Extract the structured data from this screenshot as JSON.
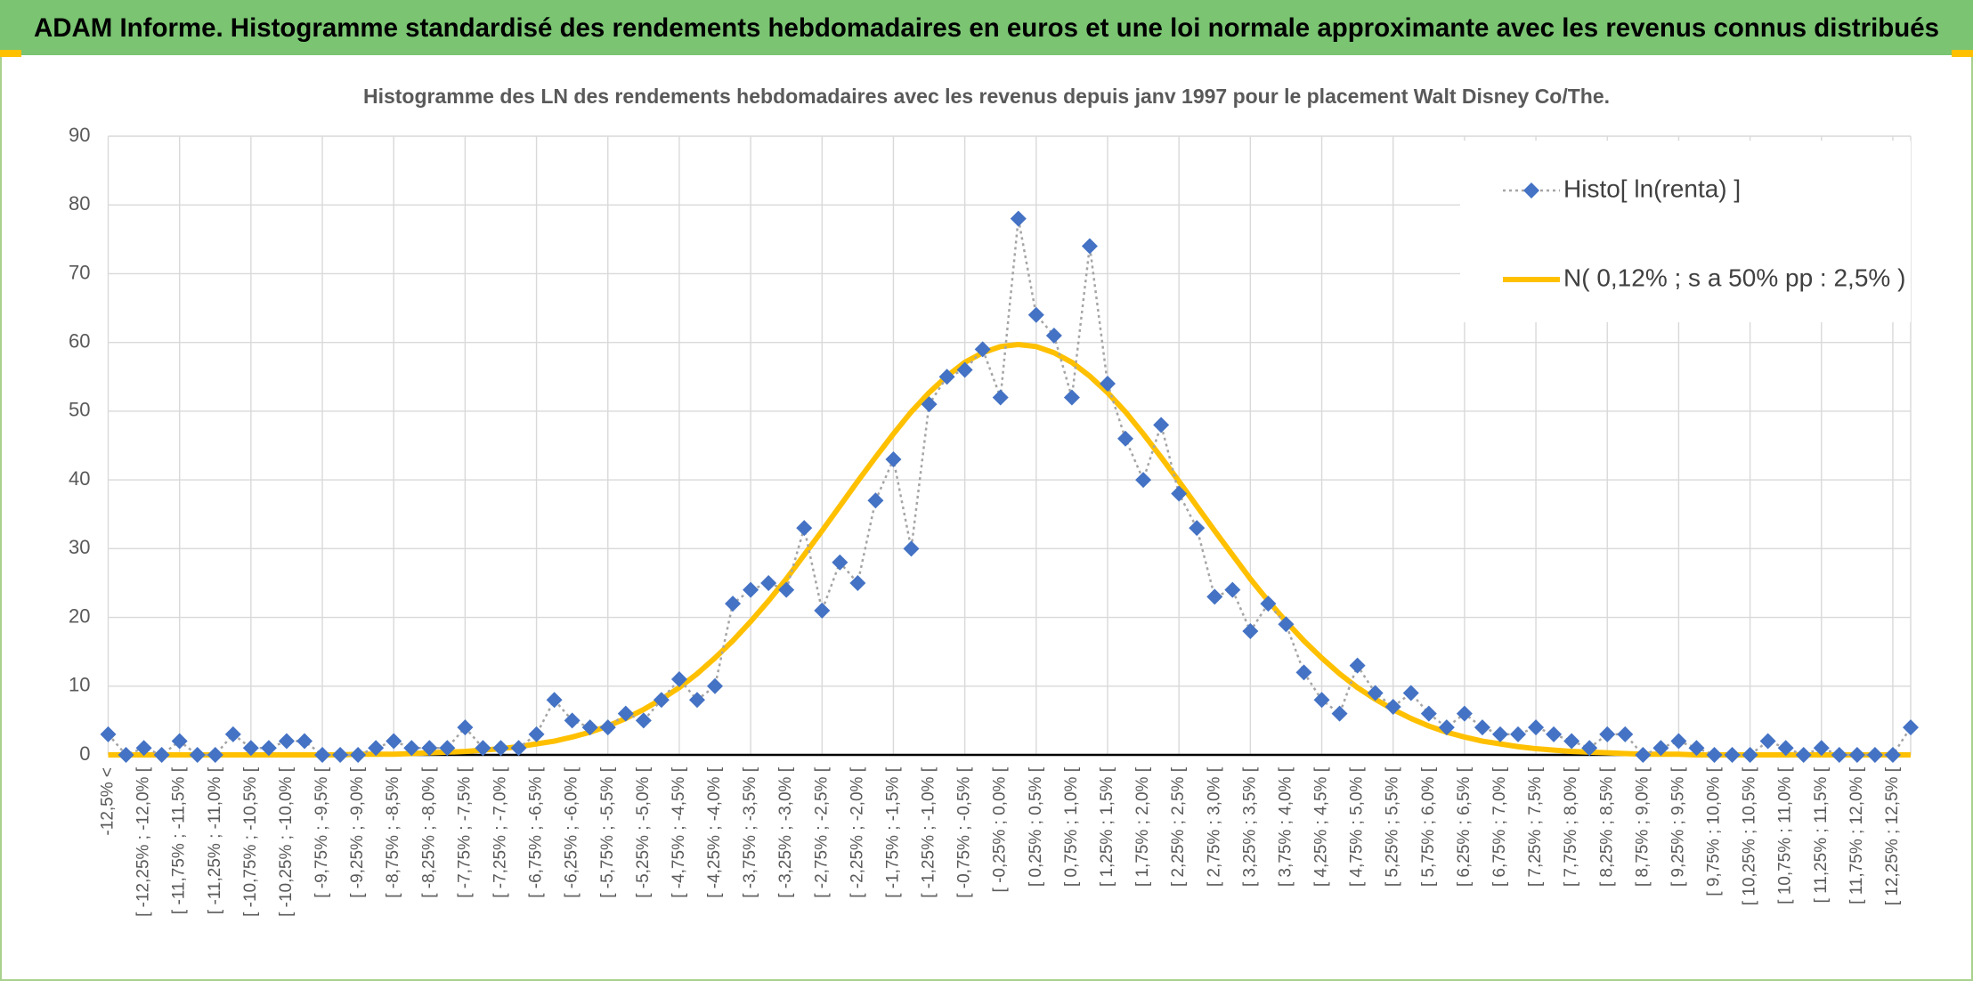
{
  "header": {
    "title": "ADAM Informe. Histogramme standardisé des rendements hebdomadaires en euros et une loi normale approximante avec les revenus connus distribués"
  },
  "chart_data": {
    "type": "line",
    "title": "Histogramme des LN des rendements hebdomadaires avec les revenus depuis janv 1997 pour le placement Walt Disney Co/The.",
    "categories": [
      "-12,5% <",
      null,
      "[ -12,25% ; -12,0% [",
      null,
      "[ -11,75% ; -11,5% [",
      null,
      "[ -11,25% ; -11,0% [",
      null,
      "[ -10,75% ; -10,5% [",
      null,
      "[ -10,25% ; -10,0% [",
      null,
      "[ -9,75% ; -9,5% [",
      null,
      "[ -9,25% ; -9,0% [",
      null,
      "[ -8,75% ; -8,5% [",
      null,
      "[ -8,25% ; -8,0% [",
      null,
      "[ -7,75% ; -7,5% [",
      null,
      "[ -7,25% ; -7,0% [",
      null,
      "[ -6,75% ; -6,5% [",
      null,
      "[ -6,25% ; -6,0% [",
      null,
      "[ -5,75% ; -5,5% [",
      null,
      "[ -5,25% ; -5,0% [",
      null,
      "[ -4,75% ; -4,5% [",
      null,
      "[ -4,25% ; -4,0% [",
      null,
      "[ -3,75% ; -3,5% [",
      null,
      "[ -3,25% ; -3,0% [",
      null,
      "[ -2,75% ; -2,5% [",
      null,
      "[ -2,25% ; -2,0% [",
      null,
      "[ -1,75% ; -1,5% [",
      null,
      "[ -1,25% ; -1,0% [",
      null,
      "[ -0,75% ; -0,5% [",
      null,
      "[ -0,25% ; 0,0% [",
      null,
      "[ 0,25% ; 0,5% [",
      null,
      "[ 0,75% ; 1,0% [",
      null,
      "[ 1,25% ; 1,5% [",
      null,
      "[ 1,75% ; 2,0% [",
      null,
      "[ 2,25% ; 2,5% [",
      null,
      "[ 2,75% ; 3,0% [",
      null,
      "[ 3,25% ; 3,5% [",
      null,
      "[ 3,75% ; 4,0% [",
      null,
      "[ 4,25% ; 4,5% [",
      null,
      "[ 4,75% ; 5,0% [",
      null,
      "[ 5,25% ; 5,5% [",
      null,
      "[ 5,75% ; 6,0% [",
      null,
      "[ 6,25% ; 6,5% [",
      null,
      "[ 6,75% ; 7,0% [",
      null,
      "[ 7,25% ; 7,5% [",
      null,
      "[ 7,75% ; 8,0% [",
      null,
      "[ 8,25% ; 8,5% [",
      null,
      "[ 8,75% ; 9,0% [",
      null,
      "[ 9,25% ; 9,5% [",
      null,
      "[ 9,75% ; 10,0% [",
      null,
      "[ 10,25% ; 10,5% [",
      null,
      "[ 10,75% ; 11,0% [",
      null,
      "[ 11,25% ; 11,5% [",
      null,
      "[ 11,75% ; 12,0% [",
      null,
      "[ 12,25% ; 12,5% [",
      null
    ],
    "series": [
      {
        "name": "Histo[ ln(renta) ]",
        "color": "#4472c4",
        "line_color": "#a5a5a5",
        "marker": "diamond",
        "values": [
          3,
          0,
          1,
          0,
          2,
          0,
          0,
          3,
          1,
          1,
          2,
          2,
          0,
          0,
          0,
          1,
          2,
          1,
          1,
          1,
          4,
          1,
          1,
          1,
          3,
          8,
          5,
          4,
          4,
          6,
          5,
          8,
          11,
          8,
          10,
          22,
          24,
          25,
          24,
          33,
          21,
          28,
          25,
          37,
          43,
          30,
          51,
          55,
          56,
          59,
          52,
          78,
          64,
          61,
          52,
          74,
          54,
          46,
          40,
          48,
          38,
          33,
          23,
          24,
          18,
          22,
          19,
          12,
          8,
          6,
          13,
          9,
          7,
          9,
          6,
          4,
          6,
          4,
          3,
          3,
          4,
          3,
          2,
          1,
          3,
          3,
          0,
          1,
          2,
          1,
          0,
          0,
          0,
          2,
          1,
          0,
          1,
          0,
          0,
          0,
          0,
          4
        ]
      },
      {
        "name": "N( 0,12% ; s a 50% pp : 2,5% )",
        "color": "#ffc000",
        "values": [
          0,
          0,
          0,
          0,
          0,
          0,
          0,
          0,
          0,
          0,
          0,
          0,
          0,
          0,
          0.1,
          0.1,
          0.1,
          0.2,
          0.3,
          0.4,
          0.5,
          0.7,
          0.9,
          1.2,
          1.6,
          2.0,
          2.6,
          3.3,
          4.2,
          5.3,
          6.6,
          8.1,
          9.8,
          11.8,
          14.1,
          16.6,
          19.4,
          22.4,
          25.6,
          29.1,
          32.6,
          36.2,
          39.8,
          43.3,
          46.7,
          49.9,
          52.7,
          55.1,
          57.1,
          58.5,
          59.4,
          59.7,
          59.4,
          58.5,
          57.1,
          55.1,
          52.7,
          49.9,
          46.7,
          43.3,
          39.8,
          36.2,
          32.6,
          29.1,
          25.6,
          22.4,
          19.4,
          16.6,
          14.1,
          11.8,
          9.8,
          8.1,
          6.6,
          5.3,
          4.2,
          3.3,
          2.6,
          2.0,
          1.6,
          1.2,
          0.9,
          0.7,
          0.5,
          0.4,
          0.3,
          0.2,
          0.1,
          0.1,
          0.1,
          0,
          0,
          0,
          0,
          0,
          0,
          0,
          0,
          0,
          0,
          0,
          0,
          0
        ]
      }
    ],
    "ylim": [
      0,
      90
    ],
    "yticks": [
      0,
      10,
      20,
      30,
      40,
      50,
      60,
      70,
      80,
      90
    ],
    "grid": true,
    "legend": "top-right"
  }
}
